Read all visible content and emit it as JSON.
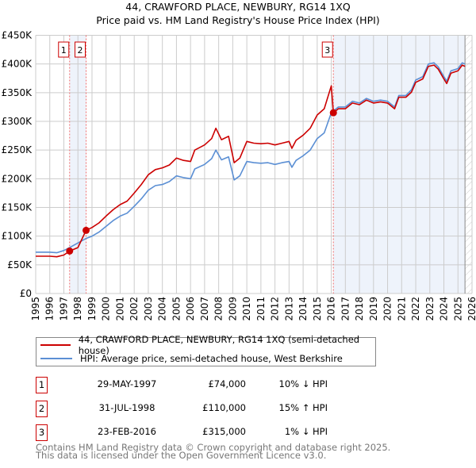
{
  "title_line1": "44, CRAWFORD PLACE, NEWBURY, RG14 1XQ",
  "title_line2": "Price paid vs. HM Land Registry's House Price Index (HPI)",
  "colors": {
    "red": "#cc0000",
    "blue": "#5b8fd4",
    "shade": "#eef3fb",
    "grid": "#cccccc"
  },
  "chart_data": {
    "type": "line",
    "title": "44, CRAWFORD PLACE, NEWBURY, RG14 1XQ — Price paid vs. HM Land Registry's House Price Index (HPI)",
    "xlim": [
      1995,
      2026
    ],
    "ylim": [
      0,
      450000
    ],
    "grid": true,
    "yticks": [
      {
        "v": 0,
        "label": "£0"
      },
      {
        "v": 50000,
        "label": "£50K"
      },
      {
        "v": 100000,
        "label": "£100K"
      },
      {
        "v": 150000,
        "label": "£150K"
      },
      {
        "v": 200000,
        "label": "£200K"
      },
      {
        "v": 250000,
        "label": "£250K"
      },
      {
        "v": 300000,
        "label": "£300K"
      },
      {
        "v": 350000,
        "label": "£350K"
      },
      {
        "v": 400000,
        "label": "£400K"
      },
      {
        "v": 450000,
        "label": "£450K"
      }
    ],
    "xticks": [
      "1995",
      "1996",
      "1997",
      "1998",
      "1999",
      "2000",
      "2001",
      "2002",
      "2003",
      "2004",
      "2005",
      "2006",
      "2007",
      "2008",
      "2009",
      "2010",
      "2011",
      "2012",
      "2013",
      "2014",
      "2015",
      "2016",
      "2017",
      "2018",
      "2019",
      "2020",
      "2021",
      "2022",
      "2023",
      "2024",
      "2025",
      "2026"
    ],
    "x": [
      1995,
      1995.5,
      1996,
      1996.5,
      1997,
      1997.41,
      1998,
      1998.58,
      1999,
      1999.5,
      2000,
      2000.5,
      2001,
      2001.5,
      2002,
      2002.5,
      2003,
      2003.5,
      2004,
      2004.5,
      2005,
      2005.5,
      2006,
      2006.3,
      2007,
      2007.5,
      2007.8,
      2008.2,
      2008.7,
      2009.1,
      2009.5,
      2010,
      2010.5,
      2011,
      2011.5,
      2012,
      2012.5,
      2013,
      2013.2,
      2013.5,
      2014,
      2014.5,
      2015,
      2015.5,
      2016.0,
      2016.15,
      2016.5,
      2017,
      2017.5,
      2018,
      2018.5,
      2019,
      2019.5,
      2020,
      2020.5,
      2020.8,
      2021.3,
      2021.7,
      2022,
      2022.5,
      2022.9,
      2023.3,
      2023.6,
      2024,
      2024.2,
      2024.5,
      2025,
      2025.3,
      2025.5
    ],
    "series": [
      {
        "name": "44, CRAWFORD PLACE, NEWBURY, RG14 1XQ (semi-detached house)",
        "color": "#cc0000",
        "values_k": [
          65,
          65,
          65,
          64,
          67,
          74,
          80,
          110,
          115,
          123,
          135,
          146,
          155,
          161,
          175,
          190,
          207,
          216,
          219,
          224,
          236,
          232,
          230,
          250,
          259,
          270,
          288,
          268,
          274,
          228,
          236,
          265,
          262,
          261,
          262,
          259,
          262,
          265,
          253,
          267,
          276,
          288,
          311,
          322,
          362,
          315,
          322,
          322,
          332,
          329,
          337,
          332,
          334,
          332,
          322,
          342,
          342,
          351,
          368,
          374,
          396,
          398,
          391,
          374,
          366,
          384,
          388,
          398,
          396
        ]
      },
      {
        "name": "HPI: Average price, semi-detached house, West Berkshire",
        "color": "#5b8fd4",
        "values_k": [
          72,
          72,
          72,
          71,
          75,
          80,
          88,
          96,
          100,
          107,
          117,
          127,
          135,
          140,
          152,
          165,
          180,
          188,
          190,
          195,
          205,
          202,
          200,
          217,
          225,
          235,
          250,
          233,
          238,
          198,
          205,
          230,
          228,
          227,
          228,
          225,
          228,
          230,
          220,
          232,
          240,
          250,
          270,
          280,
          315,
          318,
          325,
          325,
          335,
          332,
          340,
          335,
          337,
          335,
          325,
          345,
          345,
          355,
          372,
          378,
          400,
          402,
          395,
          378,
          370,
          388,
          392,
          402,
          400
        ]
      }
    ],
    "sales": [
      {
        "label": "1",
        "date": "29-MAY-1997",
        "x": 1997.41,
        "price": "£74,000",
        "value": 74000,
        "hpi": "10% ↓ HPI"
      },
      {
        "label": "2",
        "date": "31-JUL-1998",
        "x": 1998.58,
        "price": "£110,000",
        "value": 110000,
        "hpi": "15% ↑ HPI"
      },
      {
        "label": "3",
        "date": "23-FEB-2016",
        "x": 2016.15,
        "price": "£315,000",
        "value": 315000,
        "hpi": "1% ↓ HPI"
      }
    ],
    "shaded_ranges": [
      [
        1997.41,
        1998.58
      ],
      [
        2016.15,
        2025.5
      ]
    ],
    "future_hatched_from": 2025.5
  },
  "legend": {
    "red_label": "44, CRAWFORD PLACE, NEWBURY, RG14 1XQ (semi-detached house)",
    "blue_label": "HPI: Average price, semi-detached house, West Berkshire"
  },
  "footer": {
    "line1": "Contains HM Land Registry data © Crown copyright and database right 2025.",
    "line2": "This data is licensed under the Open Government Licence v3.0."
  }
}
